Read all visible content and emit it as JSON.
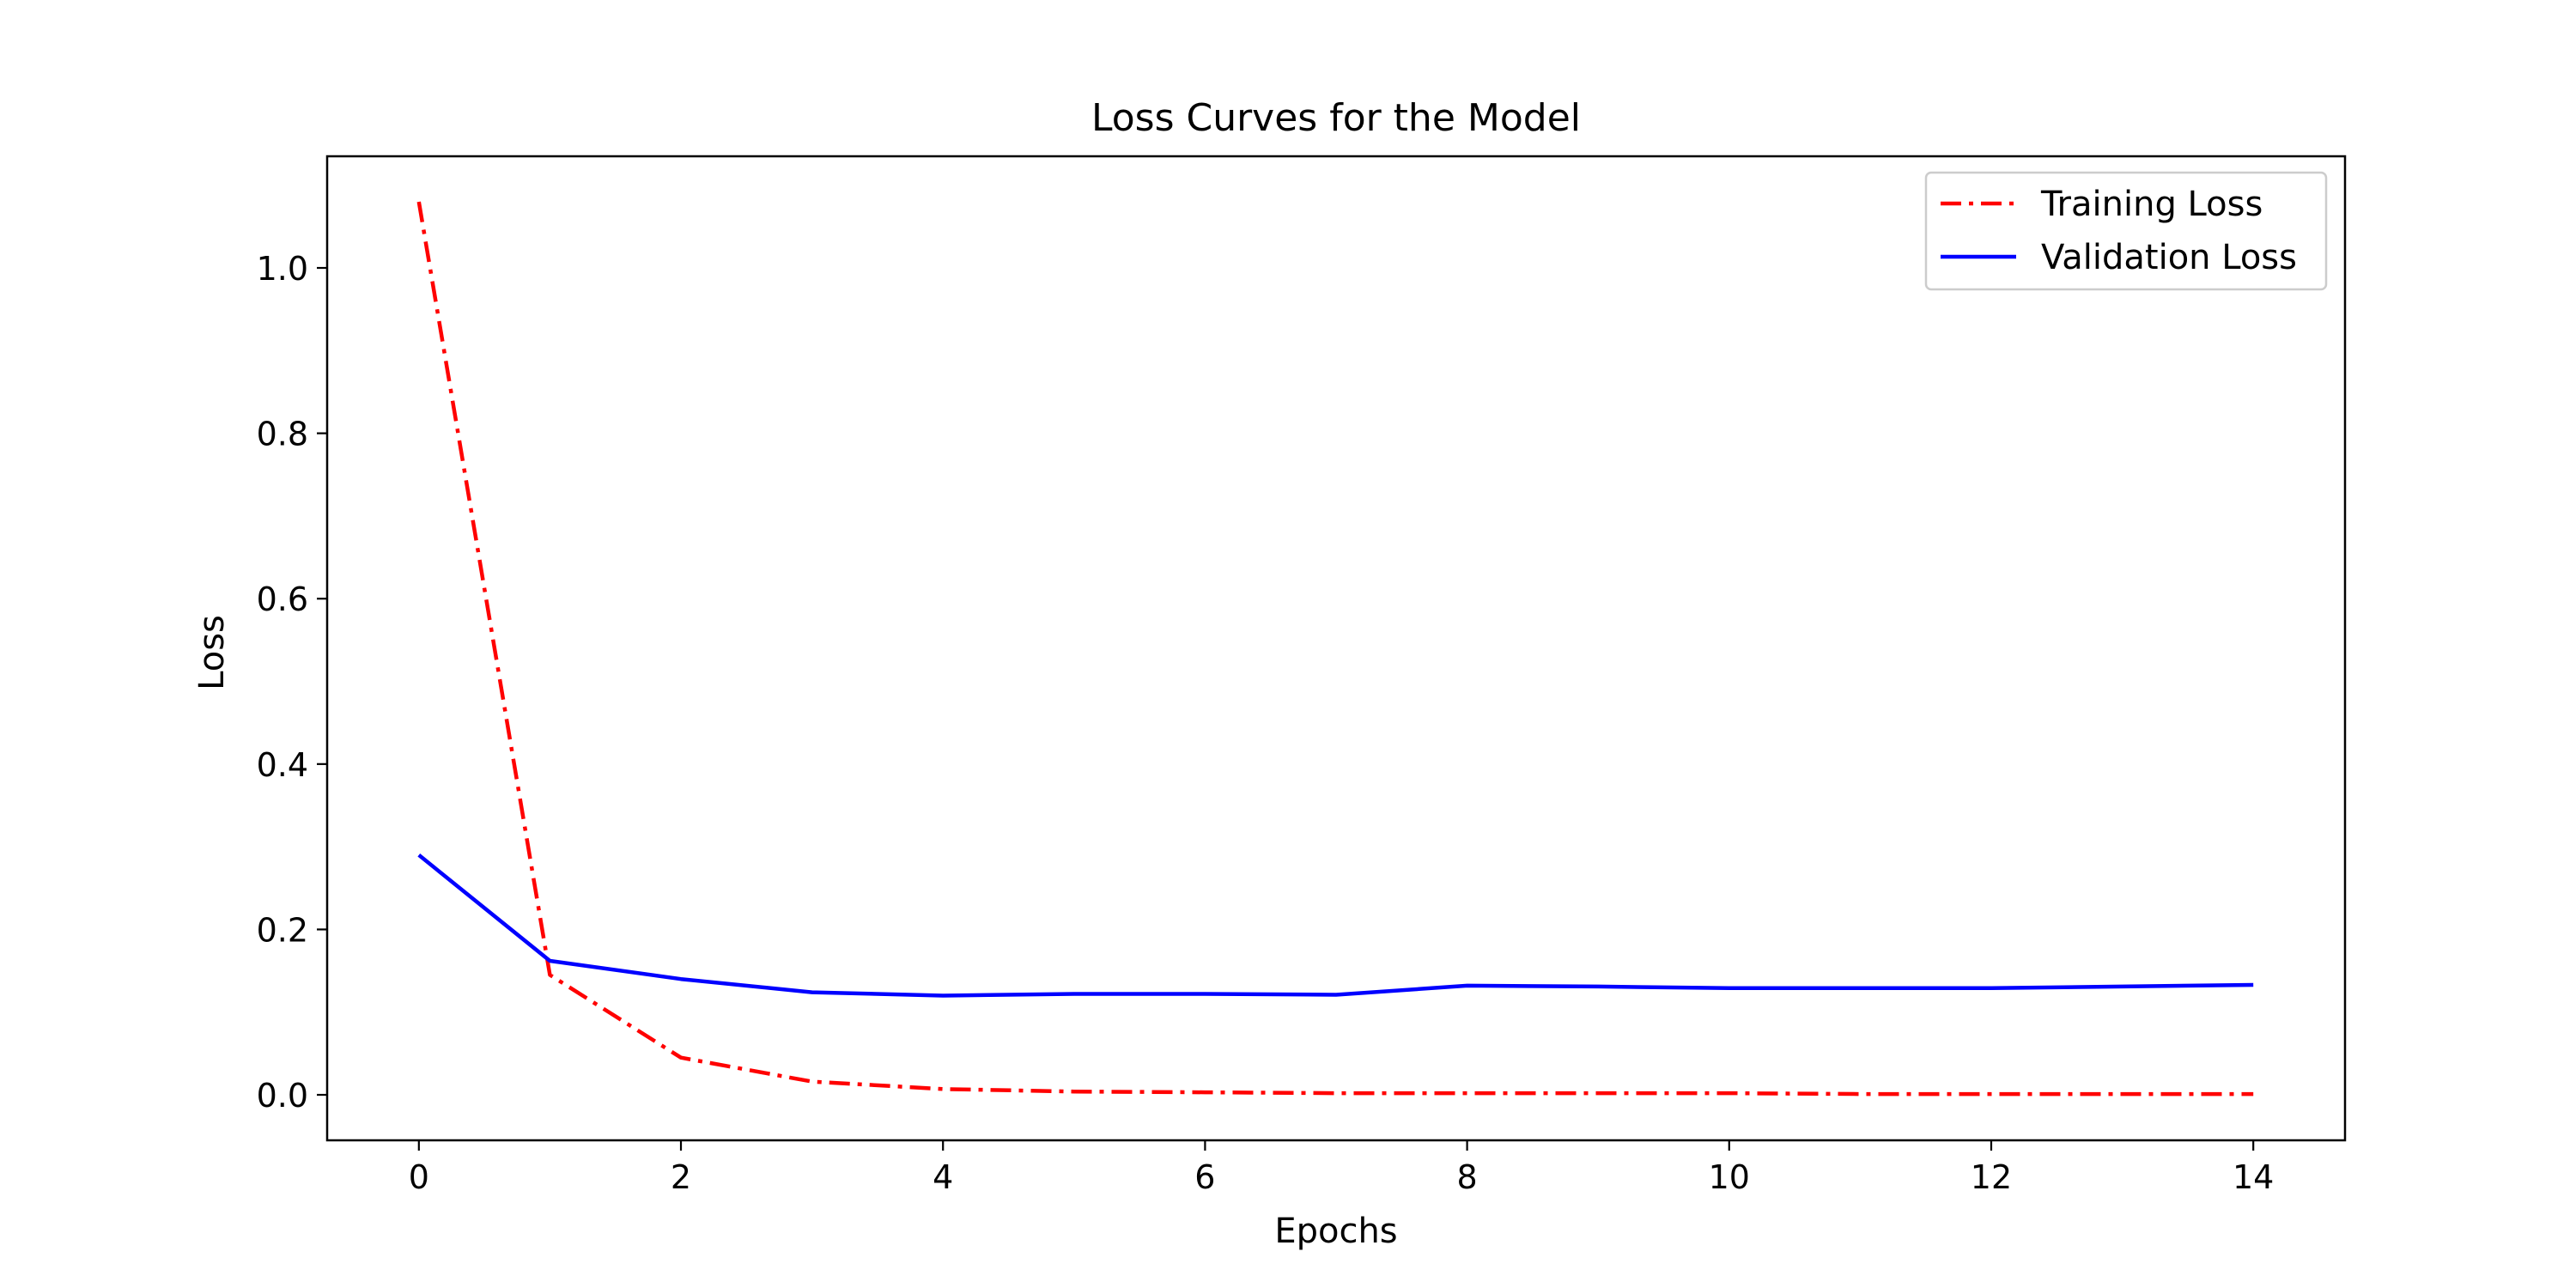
{
  "chart_data": {
    "type": "line",
    "title": "Loss Curves for the Model",
    "xlabel": "Epochs",
    "ylabel": "Loss",
    "xlim": [
      -0.7,
      14.7
    ],
    "ylim": [
      -0.055,
      1.135
    ],
    "xticks": [
      0,
      2,
      4,
      6,
      8,
      10,
      12,
      14
    ],
    "yticks": [
      0.0,
      0.2,
      0.4,
      0.6,
      0.8,
      1.0
    ],
    "xtick_labels": [
      "0",
      "2",
      "4",
      "6",
      "8",
      "10",
      "12",
      "14"
    ],
    "ytick_labels": [
      "0.0",
      "0.2",
      "0.4",
      "0.6",
      "0.8",
      "1.0"
    ],
    "grid": false,
    "legend_position": "top-right",
    "x": [
      0,
      1,
      2,
      3,
      4,
      5,
      6,
      7,
      8,
      9,
      10,
      11,
      12,
      13,
      14
    ],
    "series": [
      {
        "name": "Training Loss",
        "color": "#ff0000",
        "line_style": "dash-dot",
        "values": [
          1.08,
          0.145,
          0.045,
          0.016,
          0.007,
          0.004,
          0.003,
          0.002,
          0.002,
          0.002,
          0.002,
          0.001,
          0.001,
          0.001,
          0.001
        ]
      },
      {
        "name": "Validation Loss",
        "color": "#0000ff",
        "line_style": "solid",
        "values": [
          0.29,
          0.162,
          0.14,
          0.124,
          0.12,
          0.122,
          0.122,
          0.121,
          0.132,
          0.131,
          0.129,
          0.129,
          0.129,
          0.131,
          0.133
        ]
      }
    ]
  }
}
